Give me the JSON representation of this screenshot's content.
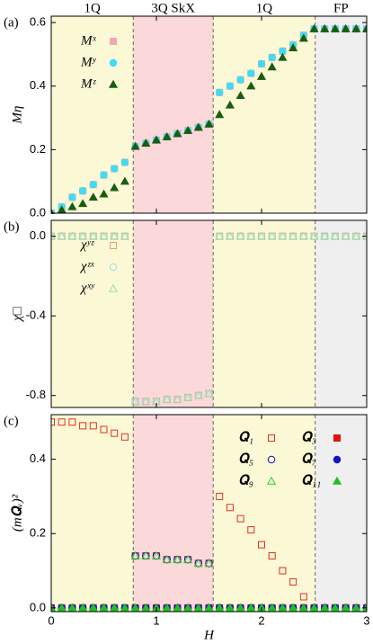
{
  "chart_data": [
    {
      "type": "scatter",
      "label": "(a)",
      "ylabel": "Mη",
      "phases": [
        {
          "label": "1Q",
          "start": 0,
          "end": 0.78,
          "color": "#fbf8d6"
        },
        {
          "label": "3Q SkX",
          "start": 0.78,
          "end": 1.54,
          "color": "#fbd8da"
        },
        {
          "label": "1Q",
          "start": 1.54,
          "end": 2.51,
          "color": "#fbf8d6"
        },
        {
          "label": "FP",
          "start": 2.51,
          "end": 3,
          "color": "#efefef"
        }
      ],
      "xlim": [
        0,
        3
      ],
      "ylim": [
        0,
        0.62
      ],
      "yticks": [
        {
          "value": 0,
          "label": "0.0"
        },
        {
          "value": 0.2,
          "label": "0.2"
        },
        {
          "value": 0.4,
          "label": "0.4"
        },
        {
          "value": 0.6,
          "label": "0.6"
        }
      ],
      "x": [
        0,
        0.1,
        0.2,
        0.3,
        0.4,
        0.5,
        0.6,
        0.7,
        0.8,
        0.9,
        1.0,
        1.1,
        1.2,
        1.3,
        1.4,
        1.5,
        1.6,
        1.7,
        1.8,
        1.9,
        2.0,
        2.1,
        2.2,
        2.3,
        2.4,
        2.5,
        2.6,
        2.7,
        2.8,
        2.9,
        3.0
      ],
      "series": [
        {
          "name": "Mˣ",
          "color": "#f4a6b4",
          "marker": "square",
          "filled": true,
          "values": [
            0,
            0.02,
            0.05,
            0.07,
            0.09,
            0.12,
            0.14,
            0.16,
            0.21,
            0.22,
            0.23,
            0.24,
            0.25,
            0.26,
            0.27,
            0.28,
            0.38,
            0.4,
            0.42,
            0.44,
            0.47,
            0.49,
            0.51,
            0.53,
            0.56,
            0.58,
            0.58,
            0.58,
            0.58,
            0.58,
            0.58
          ]
        },
        {
          "name": "Mʸ",
          "color": "#3fdcf4",
          "marker": "circle",
          "filled": true,
          "values": [
            0,
            0.02,
            0.05,
            0.07,
            0.09,
            0.12,
            0.14,
            0.16,
            0.21,
            0.22,
            0.23,
            0.24,
            0.25,
            0.26,
            0.27,
            0.28,
            0.38,
            0.4,
            0.42,
            0.44,
            0.47,
            0.49,
            0.51,
            0.53,
            0.56,
            0.58,
            0.58,
            0.58,
            0.58,
            0.58,
            0.58
          ]
        },
        {
          "name": "Mᶻ",
          "color": "#1a5c10",
          "marker": "triangle",
          "filled": true,
          "values": [
            0,
            0.01,
            0.02,
            0.03,
            0.05,
            0.06,
            0.08,
            0.1,
            0.21,
            0.22,
            0.23,
            0.24,
            0.25,
            0.26,
            0.27,
            0.28,
            0.31,
            0.34,
            0.37,
            0.4,
            0.43,
            0.46,
            0.49,
            0.52,
            0.55,
            0.58,
            0.58,
            0.58,
            0.58,
            0.58,
            0.58
          ]
        }
      ]
    },
    {
      "type": "scatter",
      "label": "(b)",
      "ylabel": "χ□",
      "xlim": [
        0,
        3
      ],
      "ylim": [
        -0.86,
        0.08
      ],
      "yticks": [
        {
          "value": 0,
          "label": "0.0"
        },
        -0.4,
        -0.8
      ],
      "x": [
        0,
        0.1,
        0.2,
        0.3,
        0.4,
        0.5,
        0.6,
        0.7,
        0.8,
        0.9,
        1.0,
        1.1,
        1.2,
        1.3,
        1.4,
        1.5,
        1.6,
        1.7,
        1.8,
        1.9,
        2.0,
        2.1,
        2.2,
        2.3,
        2.4,
        2.5,
        2.6,
        2.7,
        2.8,
        2.9,
        3.0
      ],
      "series": [
        {
          "name": "χʸᶻ",
          "color": "#e8a070",
          "marker": "square",
          "filled": false,
          "values": [
            0,
            0,
            0,
            0,
            0,
            0,
            0,
            0,
            -0.83,
            -0.83,
            -0.83,
            -0.82,
            -0.82,
            -0.81,
            -0.8,
            -0.79,
            0,
            0,
            0,
            0,
            0,
            0,
            0,
            0,
            0,
            0,
            0,
            0,
            0,
            0,
            0
          ]
        },
        {
          "name": "χᶻˣ",
          "color": "#9adede",
          "marker": "circle",
          "filled": false,
          "values": [
            0,
            0,
            0,
            0,
            0,
            0,
            0,
            0,
            -0.83,
            -0.83,
            -0.83,
            -0.82,
            -0.82,
            -0.81,
            -0.8,
            -0.79,
            0,
            0,
            0,
            0,
            0,
            0,
            0,
            0,
            0,
            0,
            0,
            0,
            0,
            0,
            0
          ]
        },
        {
          "name": "χˣʸ",
          "color": "#a0dca0",
          "marker": "triangle",
          "filled": false,
          "values": [
            0,
            0,
            0,
            0,
            0,
            0,
            0,
            0,
            -0.83,
            -0.83,
            -0.83,
            -0.82,
            -0.82,
            -0.81,
            -0.8,
            -0.79,
            0,
            0,
            0,
            0,
            0,
            0,
            0,
            0,
            0,
            0,
            0,
            0,
            0,
            0,
            0
          ]
        }
      ]
    },
    {
      "type": "scatter",
      "label": "(c)",
      "ylabel": "(m𝐐ᵥ)²",
      "xlabel": "H",
      "xlim": [
        0,
        3
      ],
      "ylim": [
        -0.01,
        0.52
      ],
      "xticks": [
        0,
        1,
        2,
        3
      ],
      "yticks": [
        {
          "value": 0,
          "label": "0.0"
        },
        0.2,
        0.4
      ],
      "x": [
        0,
        0.1,
        0.2,
        0.3,
        0.4,
        0.5,
        0.6,
        0.7,
        0.8,
        0.9,
        1.0,
        1.1,
        1.2,
        1.3,
        1.4,
        1.5,
        1.6,
        1.7,
        1.8,
        1.9,
        2.0,
        2.1,
        2.2,
        2.3,
        2.4,
        2.5,
        2.6,
        2.7,
        2.8,
        2.9,
        3.0
      ],
      "series": [
        {
          "name": "𝐐₁",
          "color": "#e03020",
          "marker": "square",
          "filled": false,
          "values": [
            0.5,
            0.5,
            0.5,
            0.49,
            0.49,
            0.48,
            0.47,
            0.46,
            0.14,
            0.14,
            0.14,
            0.13,
            0.13,
            0.13,
            0.12,
            0.12,
            0.3,
            0.27,
            0.24,
            0.21,
            0.17,
            0.14,
            0.1,
            0.07,
            0.03,
            0,
            0,
            0,
            0,
            0,
            0
          ]
        },
        {
          "name": "𝐐₃",
          "color": "#e81010",
          "marker": "square",
          "filled": true,
          "values": [
            0,
            0,
            0,
            0,
            0,
            0,
            0,
            0,
            0,
            0,
            0,
            0,
            0,
            0,
            0,
            0,
            0,
            0,
            0,
            0,
            0,
            0,
            0,
            0,
            0,
            0,
            0,
            0,
            0,
            0,
            0
          ]
        },
        {
          "name": "𝐐₅",
          "color": "#1010c0",
          "marker": "circle",
          "filled": false,
          "values": [
            0,
            0,
            0,
            0,
            0,
            0,
            0,
            0,
            0.14,
            0.14,
            0.14,
            0.13,
            0.13,
            0.13,
            0.12,
            0.12,
            0,
            0,
            0,
            0,
            0,
            0,
            0,
            0,
            0,
            0,
            0,
            0,
            0,
            0,
            0
          ]
        },
        {
          "name": "𝐐₇",
          "color": "#1010d0",
          "marker": "circle",
          "filled": true,
          "values": [
            0,
            0,
            0,
            0,
            0,
            0,
            0,
            0,
            0,
            0,
            0,
            0,
            0,
            0,
            0,
            0,
            0,
            0,
            0,
            0,
            0,
            0,
            0,
            0,
            0,
            0,
            0,
            0,
            0,
            0,
            0
          ]
        },
        {
          "name": "𝐐₉",
          "color": "#30d030",
          "marker": "triangle",
          "filled": false,
          "values": [
            0,
            0,
            0,
            0,
            0,
            0,
            0,
            0,
            0.14,
            0.14,
            0.14,
            0.13,
            0.13,
            0.13,
            0.12,
            0.12,
            0,
            0,
            0,
            0,
            0,
            0,
            0,
            0,
            0,
            0,
            0,
            0,
            0,
            0,
            0
          ]
        },
        {
          "name": "𝐐₁₁",
          "color": "#20c020",
          "marker": "triangle",
          "filled": true,
          "values": [
            0,
            0,
            0,
            0,
            0,
            0,
            0,
            0,
            0,
            0,
            0,
            0,
            0,
            0,
            0,
            0,
            0,
            0,
            0,
            0,
            0,
            0,
            0,
            0,
            0,
            0,
            0,
            0,
            0,
            0,
            0
          ]
        }
      ]
    }
  ]
}
